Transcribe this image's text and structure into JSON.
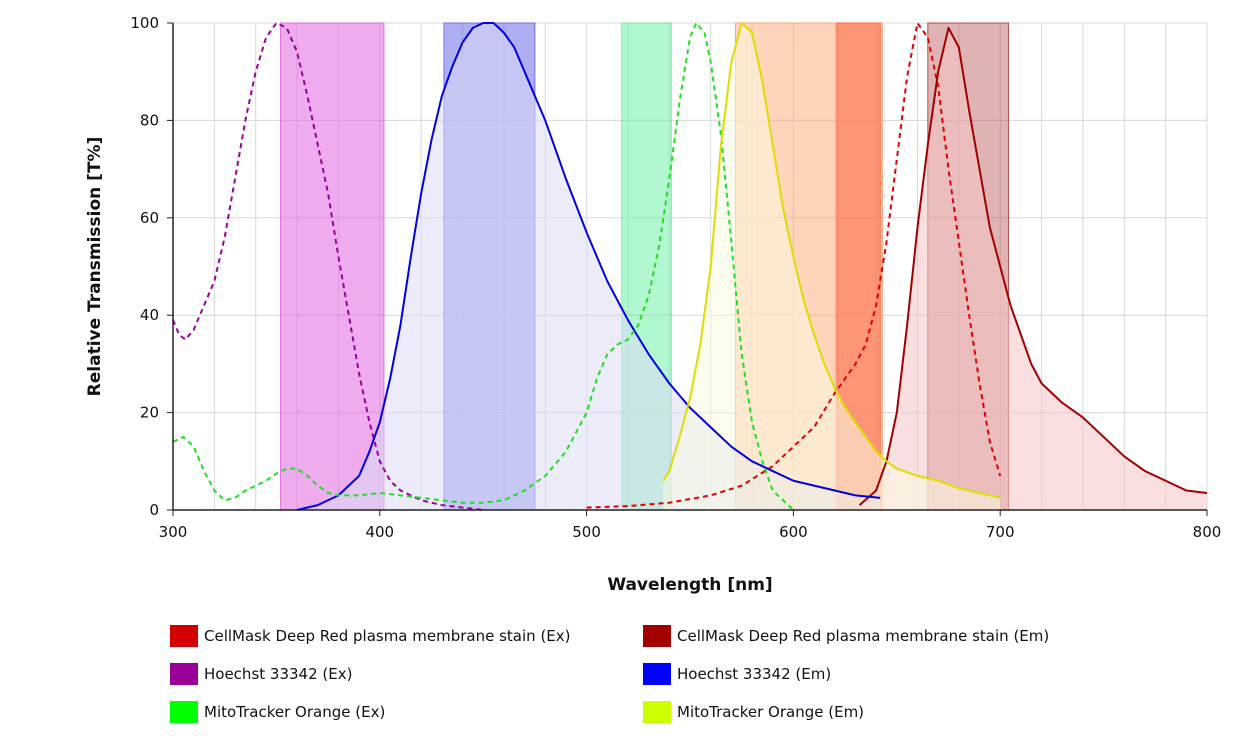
{
  "chart_data": {
    "type": "line",
    "title": "",
    "xlabel": "Wavelength [nm]",
    "ylabel": "Relative Transmission [T%]",
    "xlim": [
      300,
      800
    ],
    "ylim": [
      0,
      100
    ],
    "x_ticks": [
      300,
      400,
      500,
      600,
      700,
      800
    ],
    "y_ticks": [
      0,
      20,
      40,
      60,
      80,
      100
    ],
    "x_tick_labels": [
      "300",
      "400",
      "500",
      "600",
      "700",
      "800"
    ],
    "y_tick_labels": [
      "0",
      "20",
      "40",
      "60",
      "80",
      "100"
    ],
    "grid": "vertical and horizontal",
    "legend_position": "bottom",
    "filter_bands": [
      {
        "from": 352,
        "to": 402,
        "color": "#e066e0",
        "opacity": 0.55
      },
      {
        "from": 431,
        "to": 475,
        "color": "#6b6be8",
        "opacity": 0.55
      },
      {
        "from": 517,
        "to": 541,
        "color": "#66f0a0",
        "opacity": 0.5
      },
      {
        "from": 572,
        "to": 643,
        "color": "#ffa066",
        "opacity": 0.45
      },
      {
        "from": 621,
        "to": 642,
        "color": "#ff6040",
        "opacity": 0.55
      },
      {
        "from": 665,
        "to": 704,
        "color": "#b04040",
        "opacity": 0.4
      }
    ],
    "series": [
      {
        "name": "CellMask Deep Red plasma membrane stain (Ex)",
        "color": "#e00000",
        "dash": true,
        "fill": false,
        "points": [
          [
            500,
            0.5
          ],
          [
            520,
            0.8
          ],
          [
            540,
            1.5
          ],
          [
            560,
            3
          ],
          [
            575,
            5
          ],
          [
            590,
            9
          ],
          [
            600,
            13
          ],
          [
            610,
            17
          ],
          [
            620,
            24
          ],
          [
            630,
            30
          ],
          [
            635,
            34
          ],
          [
            640,
            42
          ],
          [
            645,
            55
          ],
          [
            650,
            72
          ],
          [
            655,
            89
          ],
          [
            660,
            100
          ],
          [
            665,
            97
          ],
          [
            670,
            87
          ],
          [
            675,
            70
          ],
          [
            680,
            55
          ],
          [
            685,
            40
          ],
          [
            690,
            26
          ],
          [
            695,
            14
          ],
          [
            700,
            7
          ]
        ]
      },
      {
        "name": "CellMask Deep Red plasma membrane stain (Em)",
        "color": "#a00000",
        "dash": false,
        "fill": true,
        "fill_color": "#f4c4c4",
        "points": [
          [
            632,
            1
          ],
          [
            640,
            4
          ],
          [
            645,
            10
          ],
          [
            650,
            20
          ],
          [
            655,
            38
          ],
          [
            660,
            58
          ],
          [
            665,
            75
          ],
          [
            670,
            90
          ],
          [
            675,
            99
          ],
          [
            680,
            95
          ],
          [
            685,
            82
          ],
          [
            690,
            70
          ],
          [
            695,
            58
          ],
          [
            700,
            50
          ],
          [
            705,
            42
          ],
          [
            710,
            36
          ],
          [
            715,
            30
          ],
          [
            720,
            26
          ],
          [
            730,
            22
          ],
          [
            740,
            19
          ],
          [
            750,
            15
          ],
          [
            760,
            11
          ],
          [
            770,
            8
          ],
          [
            780,
            6
          ],
          [
            790,
            4
          ],
          [
            800,
            3.5
          ]
        ]
      },
      {
        "name": "Hoechst 33342 (Ex)",
        "color": "#990099",
        "dash": true,
        "fill": false,
        "points": [
          [
            300,
            39
          ],
          [
            303,
            36
          ],
          [
            306,
            35
          ],
          [
            310,
            37
          ],
          [
            315,
            42
          ],
          [
            320,
            47
          ],
          [
            325,
            56
          ],
          [
            330,
            68
          ],
          [
            335,
            80
          ],
          [
            340,
            90
          ],
          [
            345,
            97
          ],
          [
            350,
            100
          ],
          [
            355,
            99
          ],
          [
            360,
            94
          ],
          [
            365,
            85
          ],
          [
            370,
            75
          ],
          [
            375,
            65
          ],
          [
            380,
            52
          ],
          [
            385,
            40
          ],
          [
            390,
            28
          ],
          [
            395,
            18
          ],
          [
            400,
            10
          ],
          [
            405,
            6
          ],
          [
            410,
            4
          ],
          [
            420,
            2
          ],
          [
            430,
            1
          ],
          [
            440,
            0.5
          ],
          [
            450,
            0
          ]
        ]
      },
      {
        "name": "Hoechst 33342 (Em)",
        "color": "#0000dd",
        "dash": false,
        "fill": true,
        "fill_color": "#dcdcf8",
        "points": [
          [
            360,
            0
          ],
          [
            370,
            1
          ],
          [
            380,
            3
          ],
          [
            390,
            7
          ],
          [
            395,
            12
          ],
          [
            400,
            18
          ],
          [
            405,
            27
          ],
          [
            410,
            38
          ],
          [
            415,
            52
          ],
          [
            420,
            65
          ],
          [
            425,
            76
          ],
          [
            430,
            85
          ],
          [
            435,
            91
          ],
          [
            440,
            96
          ],
          [
            445,
            99
          ],
          [
            450,
            100
          ],
          [
            455,
            100
          ],
          [
            460,
            98
          ],
          [
            465,
            95
          ],
          [
            470,
            90
          ],
          [
            475,
            85
          ],
          [
            480,
            80
          ],
          [
            490,
            68
          ],
          [
            500,
            57
          ],
          [
            510,
            47
          ],
          [
            520,
            39
          ],
          [
            530,
            32
          ],
          [
            540,
            26
          ],
          [
            550,
            21
          ],
          [
            560,
            17
          ],
          [
            570,
            13
          ],
          [
            580,
            10
          ],
          [
            590,
            8
          ],
          [
            600,
            6
          ],
          [
            610,
            5
          ],
          [
            620,
            4
          ],
          [
            630,
            3
          ],
          [
            642,
            2.5
          ]
        ]
      },
      {
        "name": "MitoTracker Orange (Ex)",
        "color": "#22dd22",
        "dash": true,
        "fill": false,
        "points": [
          [
            300,
            14
          ],
          [
            305,
            15
          ],
          [
            310,
            13
          ],
          [
            315,
            8
          ],
          [
            320,
            4
          ],
          [
            325,
            2
          ],
          [
            330,
            2.5
          ],
          [
            335,
            4
          ],
          [
            340,
            5
          ],
          [
            345,
            6
          ],
          [
            350,
            7.5
          ],
          [
            355,
            8.5
          ],
          [
            360,
            8.5
          ],
          [
            365,
            7
          ],
          [
            370,
            5
          ],
          [
            375,
            3.5
          ],
          [
            380,
            3
          ],
          [
            390,
            3
          ],
          [
            400,
            3.5
          ],
          [
            410,
            3
          ],
          [
            420,
            2.5
          ],
          [
            430,
            2
          ],
          [
            440,
            1.5
          ],
          [
            450,
            1.5
          ],
          [
            460,
            2
          ],
          [
            470,
            4
          ],
          [
            480,
            7
          ],
          [
            490,
            12
          ],
          [
            500,
            20
          ],
          [
            505,
            27
          ],
          [
            510,
            32
          ],
          [
            515,
            34
          ],
          [
            520,
            35
          ],
          [
            525,
            38
          ],
          [
            530,
            44
          ],
          [
            535,
            54
          ],
          [
            540,
            68
          ],
          [
            545,
            84
          ],
          [
            550,
            97
          ],
          [
            553,
            100
          ],
          [
            557,
            98
          ],
          [
            560,
            92
          ],
          [
            565,
            77
          ],
          [
            570,
            55
          ],
          [
            575,
            32
          ],
          [
            580,
            18
          ],
          [
            585,
            10
          ],
          [
            590,
            4
          ],
          [
            595,
            2
          ],
          [
            600,
            0
          ]
        ]
      },
      {
        "name": "MitoTracker Orange (Em)",
        "color": "#dddd00",
        "dash": false,
        "fill": true,
        "fill_color": "#fafae0",
        "points": [
          [
            537,
            6
          ],
          [
            540,
            8
          ],
          [
            545,
            15
          ],
          [
            550,
            23
          ],
          [
            555,
            34
          ],
          [
            560,
            50
          ],
          [
            565,
            75
          ],
          [
            570,
            92
          ],
          [
            575,
            100
          ],
          [
            580,
            98
          ],
          [
            585,
            88
          ],
          [
            590,
            75
          ],
          [
            595,
            62
          ],
          [
            600,
            52
          ],
          [
            605,
            43
          ],
          [
            610,
            36
          ],
          [
            615,
            30
          ],
          [
            620,
            25
          ],
          [
            625,
            21
          ],
          [
            630,
            18
          ],
          [
            635,
            15
          ],
          [
            640,
            12
          ],
          [
            645,
            10
          ],
          [
            650,
            8.5
          ],
          [
            660,
            7
          ],
          [
            670,
            6
          ],
          [
            680,
            4.5
          ],
          [
            690,
            3.5
          ],
          [
            700,
            2.5
          ]
        ]
      }
    ]
  },
  "legend": [
    {
      "label": "CellMask Deep Red plasma membrane stain (Ex)",
      "color": "#d40000"
    },
    {
      "label": "CellMask Deep Red plasma membrane stain (Em)",
      "color": "#a00000"
    },
    {
      "label": "Hoechst 33342 (Ex)",
      "color": "#990099"
    },
    {
      "label": "Hoechst 33342 (Em)",
      "color": "#0000ff"
    },
    {
      "label": "MitoTracker Orange (Ex)",
      "color": "#00ff00"
    },
    {
      "label": "MitoTracker Orange (Em)",
      "color": "#ccff00"
    }
  ]
}
